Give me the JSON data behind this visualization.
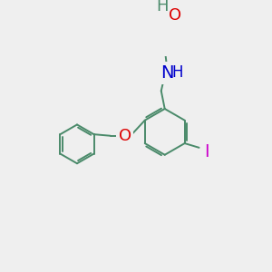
{
  "background_color": "#efefef",
  "bond_color": "#4a8a6a",
  "atom_colors": {
    "O": "#dd0000",
    "N": "#0000cc",
    "I": "#cc00cc",
    "H": "#4a8a6a"
  },
  "font_size": 12,
  "line_width": 1.4
}
